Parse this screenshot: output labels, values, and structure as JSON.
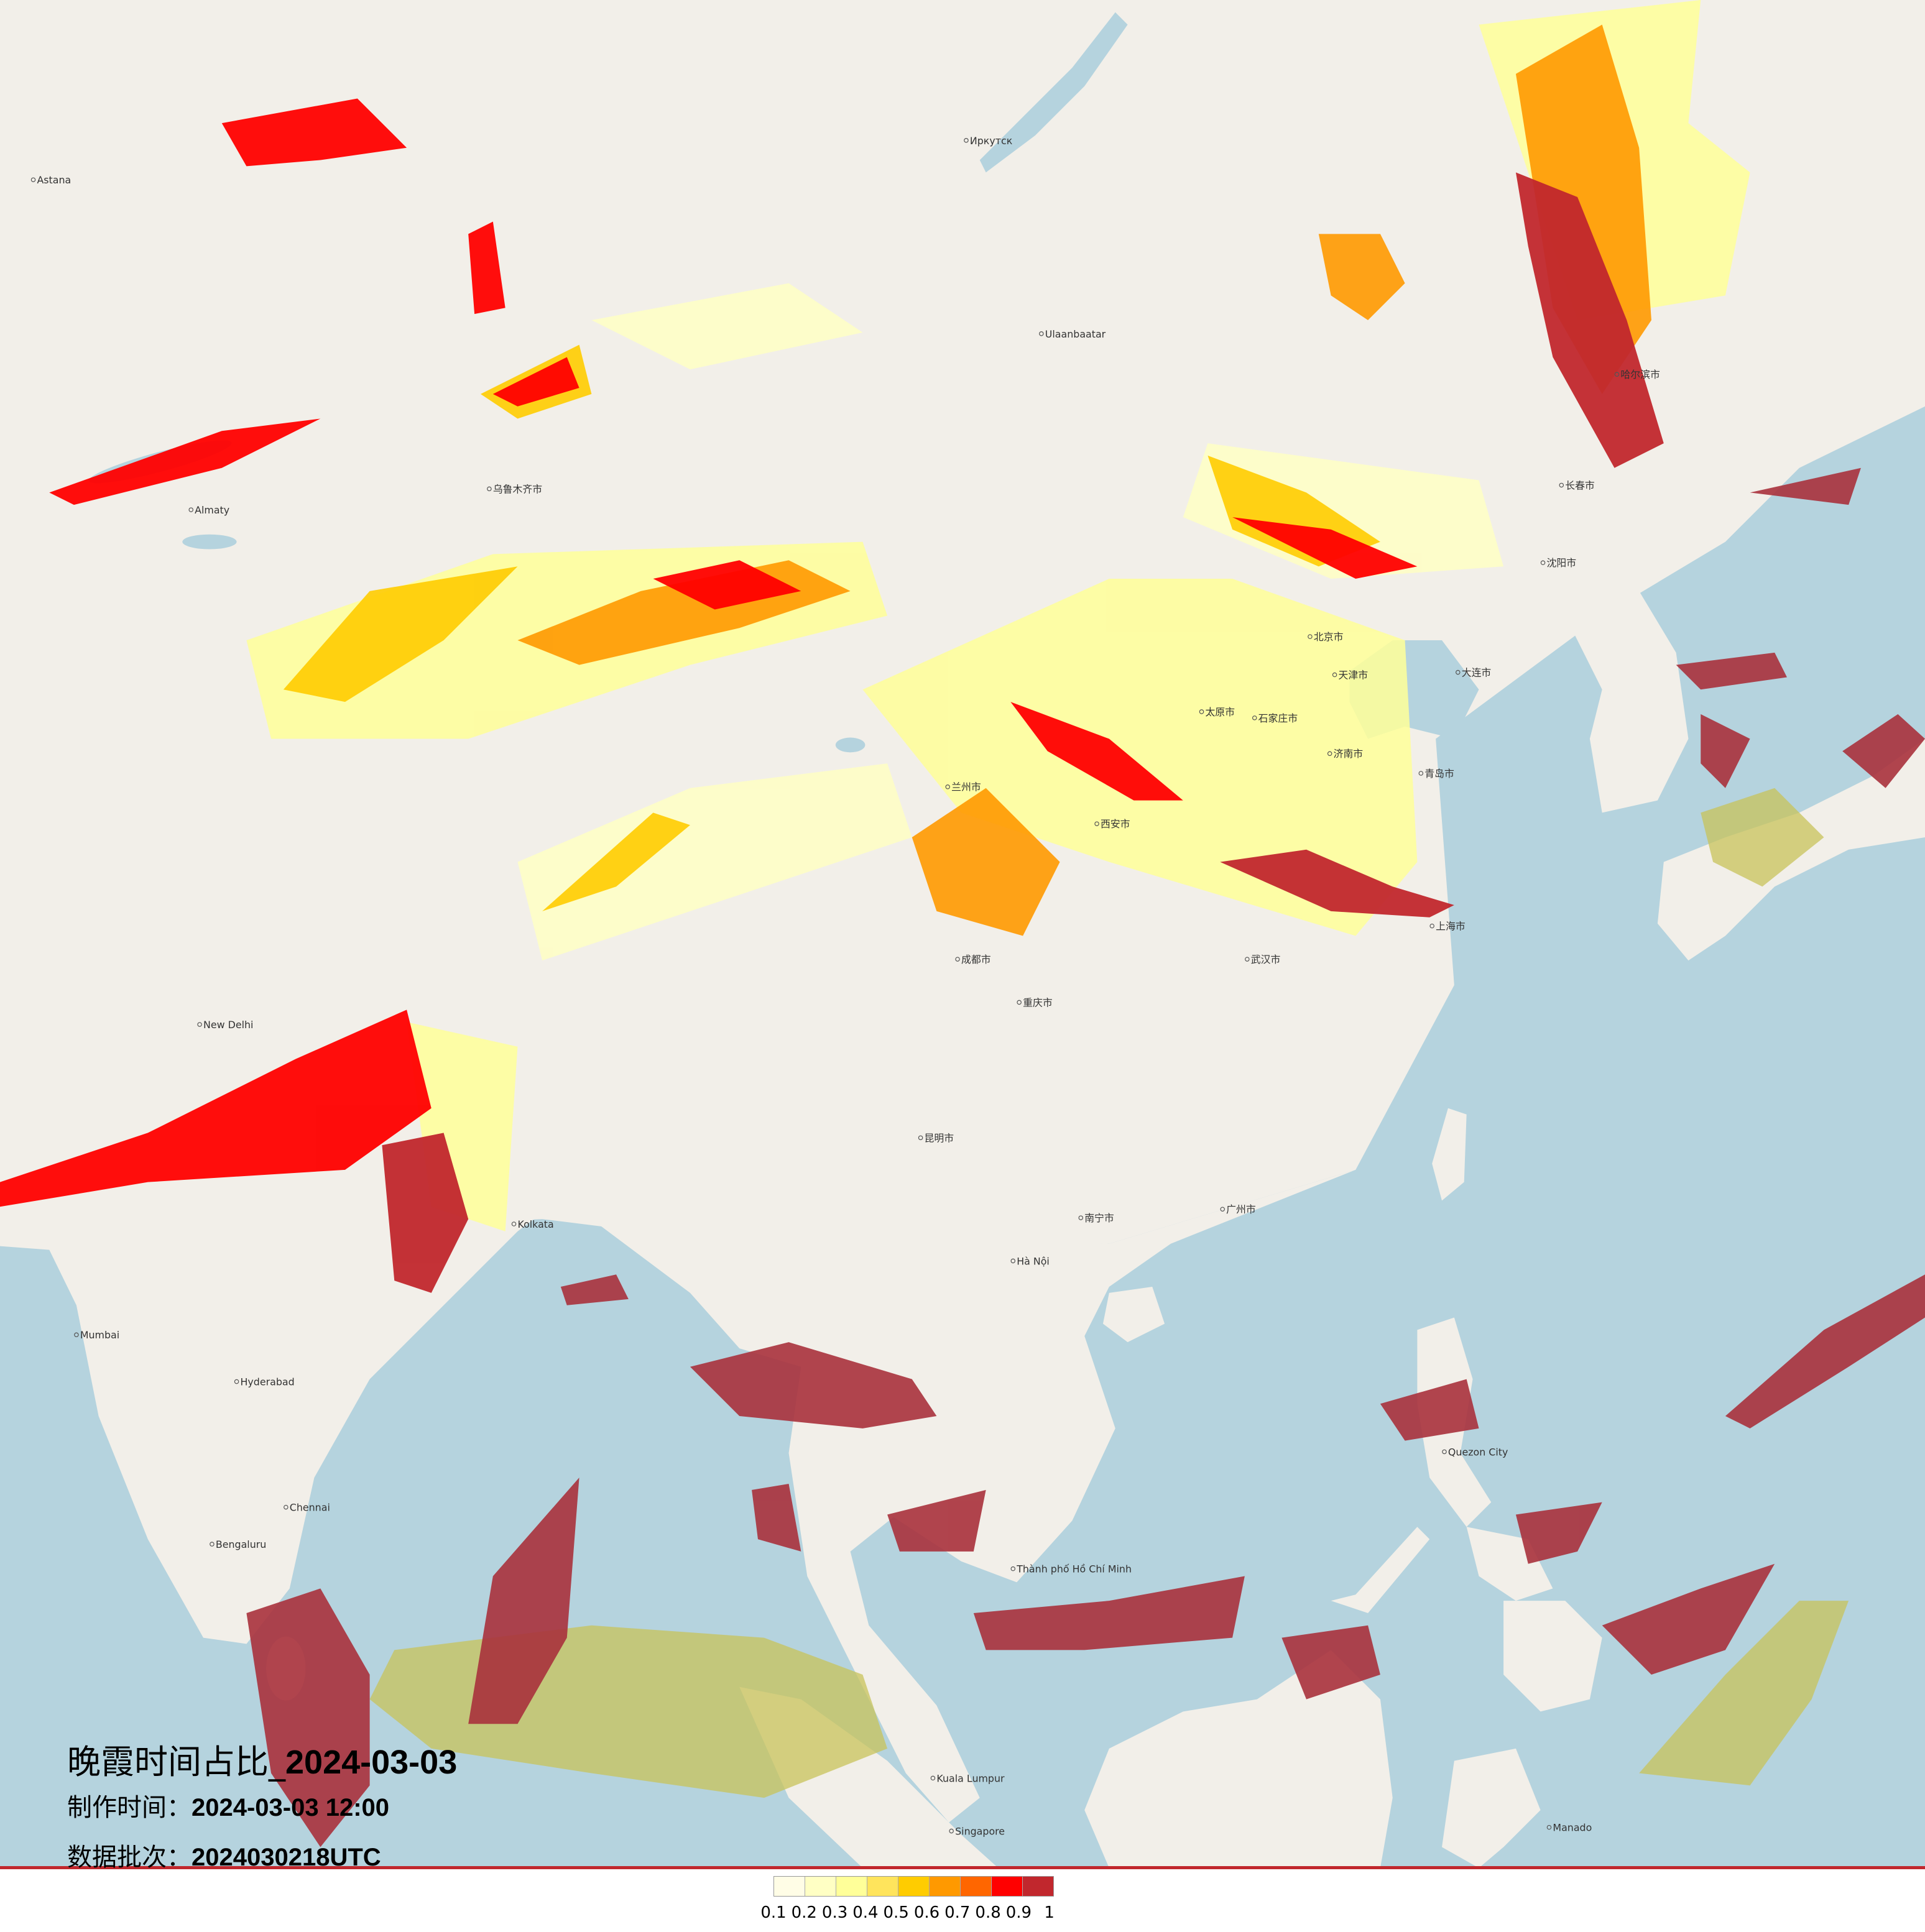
{
  "title": {
    "prefix": "晚霞时间占比_",
    "date": "2024-03-03"
  },
  "made_time": {
    "label": "制作时间：",
    "value": "2024-03-03 12:00"
  },
  "data_batch": {
    "label": "数据批次：",
    "value": "2024030218UTC"
  },
  "legend": {
    "colors": [
      "#fffde6",
      "#ffffc4",
      "#ffff99",
      "#ffe45c",
      "#ffcc00",
      "#ff9900",
      "#ff6600",
      "#ff0000",
      "#c1272d"
    ],
    "ticks": [
      "0.1",
      "0.2",
      "0.3",
      "0.4",
      "0.5",
      "0.6",
      "0.7",
      "0.8",
      "0.9",
      "1"
    ]
  },
  "basemap": {
    "land_color": "#f2efe9",
    "sea_color": "#b5d3de",
    "low_value_tint": "#c8c35a"
  },
  "cities": [
    "北京市",
    "天津市",
    "石家庄市",
    "太原市",
    "济南市",
    "青岛市",
    "大连市",
    "上海市",
    "武汉市",
    "成都市",
    "重庆市",
    "西安市",
    "广州市",
    "昆明市",
    "南宁市",
    "兰州市",
    "乌鲁木齐市",
    "哈尔滨市",
    "长春市",
    "沈阳市",
    "Hà Nội",
    "Kolkata",
    "New Delhi",
    "Mumbai",
    "Chennai",
    "Bengaluru",
    "Quezon City",
    "Astana",
    "Almaty",
    "Ulaanbaatar",
    "Иркутск",
    "Singapore",
    "Kuala Lumpur",
    "Thành phố Hồ Chí Minh",
    "Hyderabad",
    "Manado"
  ]
}
